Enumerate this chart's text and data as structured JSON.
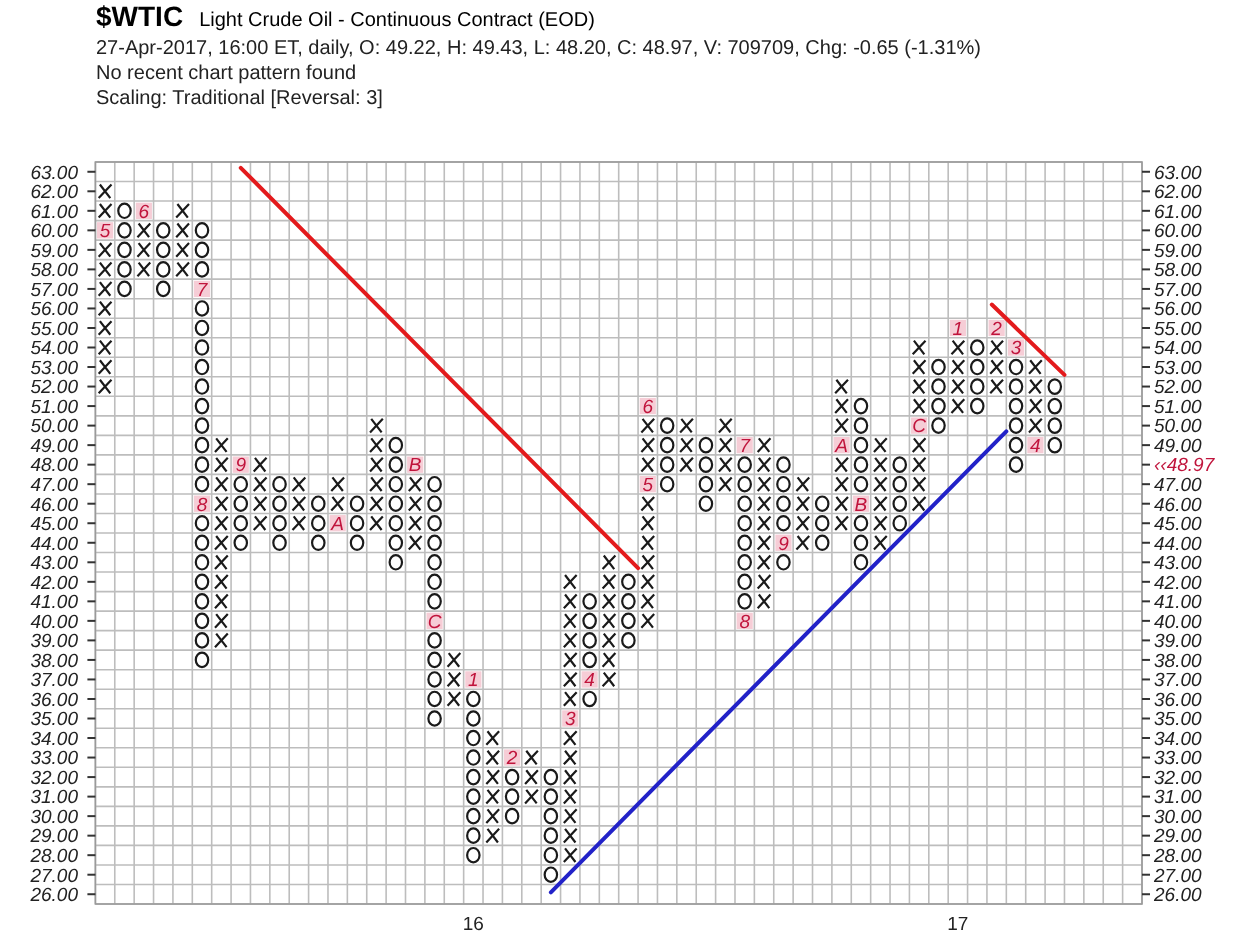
{
  "chart_data": {
    "type": "scatter",
    "title": "$WTIC",
    "subtitle": "Light Crude Oil - Continuous Contract (EOD)",
    "annotations": [
      "27-Apr-2017, 16:00 ET, daily, O: 49.22, H: 49.43, L: 48.20, C: 48.97, V: 709709, Chg: -0.65 (-1.31%)",
      "No recent chart pattern found",
      "Scaling: Traditional [Reversal: 3]",
      {
        "text": "5",
        "x": 15.24,
        "y": 60
      },
      {
        "text": "6",
        "x": 15.32,
        "y": 61
      },
      {
        "text": "7",
        "x": 15.44,
        "y": 57
      },
      {
        "text": "8",
        "x": 15.44,
        "y": 46
      },
      {
        "text": "9",
        "x": 15.52,
        "y": 48
      },
      {
        "text": "A",
        "x": 15.72,
        "y": 45
      },
      {
        "text": "B",
        "x": 15.88,
        "y": 48
      },
      {
        "text": "C",
        "x": 15.92,
        "y": 40
      },
      {
        "text": "1",
        "x": 16,
        "y": 37
      },
      {
        "text": "2",
        "x": 16.08,
        "y": 33
      },
      {
        "text": "3",
        "x": 16.2,
        "y": 35
      },
      {
        "text": "4",
        "x": 16.24,
        "y": 37
      },
      {
        "text": "5",
        "x": 16.36,
        "y": 47
      },
      {
        "text": "6",
        "x": 16.36,
        "y": 51
      },
      {
        "text": "7",
        "x": 16.56,
        "y": 49
      },
      {
        "text": "8",
        "x": 16.56,
        "y": 40
      },
      {
        "text": "9",
        "x": 16.64,
        "y": 44
      },
      {
        "text": "A",
        "x": 16.76,
        "y": 49
      },
      {
        "text": "B",
        "x": 16.8,
        "y": 46
      },
      {
        "text": "C",
        "x": 16.92,
        "y": 50
      },
      {
        "text": "1",
        "x": 17,
        "y": 55
      },
      {
        "text": "2",
        "x": 17.08,
        "y": 55
      },
      {
        "text": "3",
        "x": 17.12,
        "y": 54
      },
      {
        "text": "4",
        "x": 17.16,
        "y": 49
      },
      "‹‹48.97"
    ],
    "xlim": [
      15.22,
      17.38
    ],
    "xticks": [
      16,
      17
    ],
    "ylim": [
      25.5,
      63.5
    ],
    "yticks": [
      {
        "value": 26,
        "label": "26.00"
      },
      {
        "value": 27,
        "label": "27.00"
      },
      {
        "value": 28,
        "label": "28.00"
      },
      {
        "value": 29,
        "label": "29.00"
      },
      {
        "value": 30,
        "label": "30.00"
      },
      {
        "value": 31,
        "label": "31.00"
      },
      {
        "value": 32,
        "label": "32.00"
      },
      {
        "value": 33,
        "label": "33.00"
      },
      {
        "value": 34,
        "label": "34.00"
      },
      {
        "value": 35,
        "label": "35.00"
      },
      {
        "value": 36,
        "label": "36.00"
      },
      {
        "value": 37,
        "label": "37.00"
      },
      {
        "value": 38,
        "label": "38.00"
      },
      {
        "value": 39,
        "label": "39.00"
      },
      {
        "value": 40,
        "label": "40.00"
      },
      {
        "value": 41,
        "label": "41.00"
      },
      {
        "value": 42,
        "label": "42.00"
      },
      {
        "value": 43,
        "label": "43.00"
      },
      {
        "value": 44,
        "label": "44.00"
      },
      {
        "value": 45,
        "label": "45.00"
      },
      {
        "value": 46,
        "label": "46.00"
      },
      {
        "value": 47,
        "label": "47.00"
      },
      {
        "value": 48,
        "label": "48.00"
      },
      {
        "value": 49,
        "label": "49.00"
      },
      {
        "value": 50,
        "label": "50.00"
      },
      {
        "value": 51,
        "label": "51.00"
      },
      {
        "value": 52,
        "label": "52.00"
      },
      {
        "value": 53,
        "label": "53.00"
      },
      {
        "value": 54,
        "label": "54.00"
      },
      {
        "value": 55,
        "label": "55.00"
      },
      {
        "value": 56,
        "label": "56.00"
      },
      {
        "value": 57,
        "label": "57.00"
      },
      {
        "value": 58,
        "label": "58.00"
      },
      {
        "value": 59,
        "label": "59.00"
      },
      {
        "value": 60,
        "label": "60.00"
      },
      {
        "value": 61,
        "label": "61.00"
      },
      {
        "value": 62,
        "label": "62.00"
      },
      {
        "value": 63,
        "label": "63.00"
      }
    ],
    "y2lim": [
      25.5,
      63.5
    ],
    "y2ticks": [
      {
        "value": 26,
        "label": "26.00"
      },
      {
        "value": 27,
        "label": "27.00"
      },
      {
        "value": 28,
        "label": "28.00"
      },
      {
        "value": 29,
        "label": "29.00"
      },
      {
        "value": 30,
        "label": "30.00"
      },
      {
        "value": 31,
        "label": "31.00"
      },
      {
        "value": 32,
        "label": "32.00"
      },
      {
        "value": 33,
        "label": "33.00"
      },
      {
        "value": 34,
        "label": "34.00"
      },
      {
        "value": 35,
        "label": "35.00"
      },
      {
        "value": 36,
        "label": "36.00"
      },
      {
        "value": 37,
        "label": "37.00"
      },
      {
        "value": 38,
        "label": "38.00"
      },
      {
        "value": 39,
        "label": "39.00"
      },
      {
        "value": 40,
        "label": "40.00"
      },
      {
        "value": 41,
        "label": "41.00"
      },
      {
        "value": 42,
        "label": "42.00"
      },
      {
        "value": 43,
        "label": "43.00"
      },
      {
        "value": 44,
        "label": "44.00"
      },
      {
        "value": 45,
        "label": "45.00"
      },
      {
        "value": 46,
        "label": "46.00"
      },
      {
        "value": 47,
        "label": "47.00"
      },
      {
        "value": 48,
        "label": null
      },
      {
        "value": 49,
        "label": "49.00"
      },
      {
        "value": 50,
        "label": "50.00"
      },
      {
        "value": 51,
        "label": "51.00"
      },
      {
        "value": 52,
        "label": "52.00"
      },
      {
        "value": 53,
        "label": "53.00"
      },
      {
        "value": 54,
        "label": "54.00"
      },
      {
        "value": 55,
        "label": "55.00"
      },
      {
        "value": 56,
        "label": "56.00"
      },
      {
        "value": 57,
        "label": "57.00"
      },
      {
        "value": 58,
        "label": "58.00"
      },
      {
        "value": 59,
        "label": "59.00"
      },
      {
        "value": 60,
        "label": "60.00"
      },
      {
        "value": 61,
        "label": "61.00"
      },
      {
        "value": 62,
        "label": "62.00"
      },
      {
        "value": 63,
        "label": "63.00"
      }
    ],
    "grid": true,
    "series": [
      {
        "marker": "square",
        "color": "#f6cdd6",
        "x": [
          15.24,
          15.32,
          15.44,
          15.44,
          15.52,
          15.72,
          15.88,
          15.92,
          16,
          16.08,
          16.2,
          16.24,
          16.36,
          16.36,
          16.56,
          16.56,
          16.64,
          16.76,
          16.8,
          16.92,
          17,
          17.08,
          17.12,
          17.16
        ],
        "values": [
          60,
          61,
          57,
          46,
          48,
          45,
          48,
          40,
          37,
          33,
          35,
          37,
          47,
          51,
          49,
          40,
          44,
          49,
          46,
          50,
          55,
          55,
          54,
          49
        ]
      },
      {
        "marker": "cross",
        "color": "#1a1a1a",
        "x": [
          15.24,
          15.24,
          15.24,
          15.24,
          15.24,
          15.24,
          15.24,
          15.24,
          15.24,
          15.24,
          15.32,
          15.32,
          15.32,
          15.4,
          15.4,
          15.4,
          15.4,
          15.48,
          15.48,
          15.48,
          15.48,
          15.48,
          15.48,
          15.48,
          15.48,
          15.48,
          15.48,
          15.48,
          15.56,
          15.56,
          15.56,
          15.56,
          15.64,
          15.64,
          15.64,
          15.72,
          15.72,
          15.8,
          15.8,
          15.8,
          15.8,
          15.8,
          15.8,
          15.88,
          15.88,
          15.88,
          15.88,
          15.96,
          15.96,
          15.96,
          16.04,
          16.04,
          16.04,
          16.04,
          16.04,
          16.04,
          16.12,
          16.12,
          16.12,
          16.2,
          16.2,
          16.2,
          16.2,
          16.2,
          16.2,
          16.2,
          16.2,
          16.2,
          16.2,
          16.2,
          16.2,
          16.2,
          16.2,
          16.28,
          16.28,
          16.28,
          16.28,
          16.28,
          16.28,
          16.28,
          16.36,
          16.36,
          16.36,
          16.36,
          16.36,
          16.36,
          16.36,
          16.36,
          16.36,
          16.36,
          16.44,
          16.44,
          16.44,
          16.52,
          16.52,
          16.52,
          16.52,
          16.6,
          16.6,
          16.6,
          16.6,
          16.6,
          16.6,
          16.6,
          16.6,
          16.6,
          16.68,
          16.68,
          16.68,
          16.68,
          16.76,
          16.76,
          16.76,
          16.76,
          16.76,
          16.76,
          16.76,
          16.84,
          16.84,
          16.84,
          16.84,
          16.84,
          16.84,
          16.92,
          16.92,
          16.92,
          16.92,
          16.92,
          16.92,
          16.92,
          16.92,
          17,
          17,
          17,
          17,
          17.08,
          17.08,
          17.08,
          17.16,
          17.16,
          17.16,
          17.16
        ],
        "values": [
          52,
          53,
          54,
          55,
          56,
          57,
          58,
          59,
          61,
          62,
          58,
          59,
          60,
          58,
          59,
          60,
          61,
          39,
          40,
          41,
          42,
          43,
          44,
          45,
          46,
          47,
          48,
          49,
          45,
          46,
          47,
          48,
          45,
          46,
          47,
          46,
          47,
          45,
          46,
          47,
          48,
          49,
          50,
          44,
          45,
          46,
          47,
          36,
          37,
          38,
          29,
          30,
          31,
          32,
          33,
          34,
          31,
          32,
          33,
          28,
          29,
          30,
          31,
          32,
          33,
          34,
          36,
          37,
          38,
          39,
          40,
          41,
          42,
          37,
          38,
          39,
          40,
          41,
          42,
          43,
          40,
          41,
          42,
          43,
          44,
          45,
          46,
          48,
          49,
          50,
          48,
          49,
          50,
          47,
          48,
          49,
          50,
          41,
          42,
          43,
          44,
          45,
          46,
          47,
          48,
          49,
          44,
          45,
          46,
          47,
          45,
          46,
          47,
          48,
          50,
          51,
          52,
          44,
          45,
          46,
          47,
          48,
          49,
          46,
          47,
          48,
          49,
          51,
          52,
          53,
          54,
          51,
          52,
          53,
          54,
          52,
          53,
          54,
          50,
          51,
          52,
          53
        ]
      },
      {
        "marker": "circle",
        "color": "#1a1a1a",
        "x": [
          15.28,
          15.28,
          15.28,
          15.28,
          15.28,
          15.36,
          15.36,
          15.36,
          15.36,
          15.44,
          15.44,
          15.44,
          15.44,
          15.44,
          15.44,
          15.44,
          15.44,
          15.44,
          15.44,
          15.44,
          15.44,
          15.44,
          15.44,
          15.44,
          15.44,
          15.44,
          15.44,
          15.44,
          15.44,
          15.44,
          15.52,
          15.52,
          15.52,
          15.52,
          15.6,
          15.6,
          15.6,
          15.6,
          15.68,
          15.68,
          15.68,
          15.76,
          15.76,
          15.76,
          15.84,
          15.84,
          15.84,
          15.84,
          15.84,
          15.84,
          15.84,
          15.92,
          15.92,
          15.92,
          15.92,
          15.92,
          15.92,
          15.92,
          15.92,
          15.92,
          15.92,
          15.92,
          15.92,
          16,
          16,
          16,
          16,
          16,
          16,
          16,
          16,
          16,
          16.08,
          16.08,
          16.08,
          16.16,
          16.16,
          16.16,
          16.16,
          16.16,
          16.16,
          16.24,
          16.24,
          16.24,
          16.24,
          16.24,
          16.32,
          16.32,
          16.32,
          16.32,
          16.4,
          16.4,
          16.4,
          16.4,
          16.48,
          16.48,
          16.48,
          16.48,
          16.56,
          16.56,
          16.56,
          16.56,
          16.56,
          16.56,
          16.56,
          16.56,
          16.64,
          16.64,
          16.64,
          16.64,
          16.64,
          16.72,
          16.72,
          16.72,
          16.8,
          16.8,
          16.8,
          16.8,
          16.8,
          16.8,
          16.8,
          16.8,
          16.88,
          16.88,
          16.88,
          16.88,
          16.96,
          16.96,
          16.96,
          16.96,
          17.04,
          17.04,
          17.04,
          17.04,
          17.12,
          17.12,
          17.12,
          17.12,
          17.12,
          17.12,
          17.2,
          17.2,
          17.2,
          17.2
        ],
        "values": [
          57,
          58,
          59,
          60,
          61,
          57,
          58,
          59,
          60,
          38,
          39,
          40,
          41,
          42,
          43,
          44,
          45,
          47,
          48,
          49,
          50,
          51,
          52,
          53,
          54,
          55,
          56,
          58,
          59,
          60,
          44,
          45,
          46,
          47,
          44,
          45,
          46,
          47,
          44,
          45,
          46,
          44,
          45,
          46,
          43,
          44,
          45,
          46,
          47,
          48,
          49,
          35,
          36,
          37,
          38,
          39,
          41,
          42,
          43,
          44,
          45,
          46,
          47,
          28,
          29,
          30,
          31,
          32,
          33,
          34,
          35,
          36,
          30,
          31,
          32,
          27,
          28,
          29,
          30,
          31,
          32,
          36,
          38,
          39,
          40,
          41,
          39,
          40,
          41,
          42,
          47,
          48,
          49,
          50,
          46,
          47,
          48,
          49,
          41,
          42,
          43,
          44,
          45,
          46,
          47,
          48,
          43,
          45,
          46,
          47,
          48,
          44,
          45,
          46,
          43,
          44,
          45,
          47,
          48,
          49,
          50,
          51,
          45,
          46,
          47,
          48,
          50,
          51,
          52,
          53,
          51,
          52,
          53,
          54,
          48,
          49,
          50,
          51,
          52,
          53,
          49,
          50,
          51,
          52
        ]
      },
      {
        "type": "line",
        "color": "#e31a1c",
        "x": [
          15.52,
          16.34
        ],
        "values": [
          63.2,
          42.7
        ]
      },
      {
        "type": "line",
        "color": "#e31a1c",
        "x": [
          17.07,
          17.22
        ],
        "values": [
          56.2,
          52.6
        ]
      },
      {
        "type": "line",
        "color": "#2222c8",
        "x": [
          16.16,
          17.1
        ],
        "values": [
          26.1,
          49.7
        ]
      }
    ]
  }
}
